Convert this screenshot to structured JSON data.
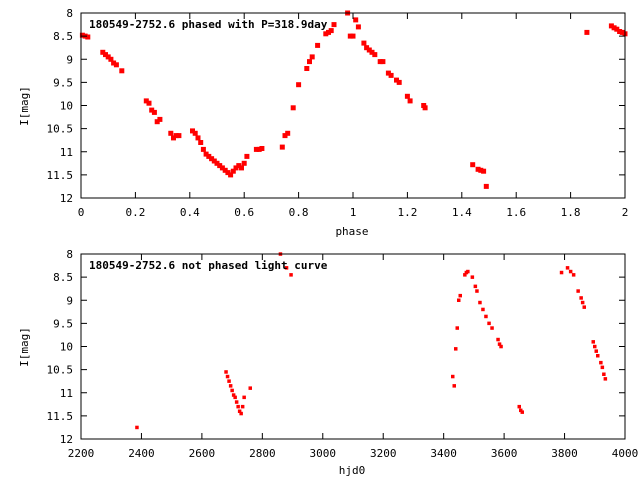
{
  "chart_data": [
    {
      "type": "scatter",
      "title": "180549-2752.6 phased with P=318.9day",
      "xlabel": "phase",
      "ylabel": "I[mag]",
      "xlim": [
        0,
        2
      ],
      "ylim": [
        12,
        8
      ],
      "y_inverted": true,
      "grid": false,
      "xticks": [
        "0",
        "0.2",
        "0.4",
        "0.6",
        "0.8",
        "1",
        "1.2",
        "1.4",
        "1.6",
        "1.8",
        "2"
      ],
      "yticks": [
        "8",
        "8.5",
        "9",
        "9.5",
        "10",
        "10.5",
        "11",
        "11.5",
        "12"
      ],
      "marker_color": "#ff0000",
      "series": [
        {
          "points": [
            [
              0.005,
              8.48
            ],
            [
              0.015,
              8.5
            ],
            [
              0.025,
              8.52
            ],
            [
              0.08,
              8.85
            ],
            [
              0.09,
              8.9
            ],
            [
              0.1,
              8.95
            ],
            [
              0.11,
              9.0
            ],
            [
              0.12,
              9.08
            ],
            [
              0.13,
              9.12
            ],
            [
              0.15,
              9.25
            ],
            [
              0.24,
              9.9
            ],
            [
              0.25,
              9.95
            ],
            [
              0.26,
              10.1
            ],
            [
              0.27,
              10.15
            ],
            [
              0.28,
              10.35
            ],
            [
              0.29,
              10.3
            ],
            [
              0.33,
              10.6
            ],
            [
              0.34,
              10.7
            ],
            [
              0.35,
              10.65
            ],
            [
              0.36,
              10.65
            ],
            [
              0.41,
              10.55
            ],
            [
              0.42,
              10.6
            ],
            [
              0.43,
              10.7
            ],
            [
              0.44,
              10.8
            ],
            [
              0.45,
              10.95
            ],
            [
              0.46,
              11.05
            ],
            [
              0.47,
              11.1
            ],
            [
              0.48,
              11.15
            ],
            [
              0.49,
              11.2
            ],
            [
              0.5,
              11.25
            ],
            [
              0.51,
              11.3
            ],
            [
              0.52,
              11.35
            ],
            [
              0.53,
              11.4
            ],
            [
              0.54,
              11.45
            ],
            [
              0.55,
              11.5
            ],
            [
              0.56,
              11.42
            ],
            [
              0.57,
              11.35
            ],
            [
              0.58,
              11.3
            ],
            [
              0.59,
              11.35
            ],
            [
              0.6,
              11.25
            ],
            [
              0.61,
              11.1
            ],
            [
              0.645,
              10.95
            ],
            [
              0.655,
              10.95
            ],
            [
              0.665,
              10.93
            ],
            [
              0.74,
              10.9
            ],
            [
              0.75,
              10.65
            ],
            [
              0.76,
              10.6
            ],
            [
              0.78,
              10.05
            ],
            [
              0.8,
              9.55
            ],
            [
              0.83,
              9.2
            ],
            [
              0.84,
              9.05
            ],
            [
              0.85,
              8.95
            ],
            [
              0.87,
              8.7
            ],
            [
              0.9,
              8.45
            ],
            [
              0.91,
              8.42
            ],
            [
              0.92,
              8.38
            ],
            [
              0.93,
              8.25
            ],
            [
              0.98,
              8.0
            ],
            [
              0.99,
              8.5
            ],
            [
              1.0,
              8.5
            ],
            [
              1.01,
              8.15
            ],
            [
              1.02,
              8.3
            ],
            [
              1.04,
              8.65
            ],
            [
              1.05,
              8.75
            ],
            [
              1.06,
              8.8
            ],
            [
              1.07,
              8.85
            ],
            [
              1.08,
              8.9
            ],
            [
              1.1,
              9.05
            ],
            [
              1.11,
              9.05
            ],
            [
              1.13,
              9.3
            ],
            [
              1.14,
              9.35
            ],
            [
              1.16,
              9.45
            ],
            [
              1.17,
              9.5
            ],
            [
              1.2,
              9.8
            ],
            [
              1.21,
              9.9
            ],
            [
              1.26,
              10.0
            ],
            [
              1.265,
              10.05
            ],
            [
              1.44,
              11.28
            ],
            [
              1.46,
              11.38
            ],
            [
              1.47,
              11.4
            ],
            [
              1.48,
              11.42
            ],
            [
              1.49,
              11.75
            ],
            [
              1.86,
              8.42
            ],
            [
              1.95,
              8.28
            ],
            [
              1.96,
              8.32
            ],
            [
              1.97,
              8.35
            ],
            [
              1.98,
              8.4
            ],
            [
              1.99,
              8.42
            ],
            [
              2.0,
              8.45
            ]
          ]
        }
      ]
    },
    {
      "type": "scatter",
      "title": "180549-2752.6 not phased light curve",
      "xlabel": "hjd0",
      "ylabel": "I[mag]",
      "xlim": [
        2200,
        4000
      ],
      "ylim": [
        12,
        8
      ],
      "y_inverted": true,
      "grid": false,
      "xticks": [
        "2200",
        "2400",
        "2600",
        "2800",
        "3000",
        "3200",
        "3400",
        "3600",
        "3800",
        "4000"
      ],
      "yticks": [
        "8",
        "8.5",
        "9",
        "9.5",
        "10",
        "10.5",
        "11",
        "11.5",
        "12"
      ],
      "marker_color": "#ff0000",
      "series": [
        {
          "points": [
            [
              2385,
              11.75
            ],
            [
              2680,
              10.55
            ],
            [
              2685,
              10.65
            ],
            [
              2690,
              10.75
            ],
            [
              2695,
              10.85
            ],
            [
              2700,
              10.95
            ],
            [
              2705,
              11.05
            ],
            [
              2710,
              11.1
            ],
            [
              2715,
              11.2
            ],
            [
              2720,
              11.3
            ],
            [
              2725,
              11.4
            ],
            [
              2730,
              11.45
            ],
            [
              2735,
              11.3
            ],
            [
              2740,
              11.1
            ],
            [
              2760,
              10.9
            ],
            [
              2860,
              8.0
            ],
            [
              2880,
              8.3
            ],
            [
              2895,
              8.45
            ],
            [
              3430,
              10.65
            ],
            [
              3435,
              10.85
            ],
            [
              3440,
              10.05
            ],
            [
              3445,
              9.6
            ],
            [
              3450,
              9.0
            ],
            [
              3455,
              8.9
            ],
            [
              3470,
              8.45
            ],
            [
              3475,
              8.4
            ],
            [
              3480,
              8.38
            ],
            [
              3495,
              8.5
            ],
            [
              3505,
              8.7
            ],
            [
              3510,
              8.8
            ],
            [
              3520,
              9.05
            ],
            [
              3530,
              9.2
            ],
            [
              3540,
              9.35
            ],
            [
              3550,
              9.5
            ],
            [
              3560,
              9.6
            ],
            [
              3580,
              9.85
            ],
            [
              3585,
              9.95
            ],
            [
              3590,
              10.0
            ],
            [
              3650,
              11.3
            ],
            [
              3655,
              11.38
            ],
            [
              3660,
              11.42
            ],
            [
              3790,
              8.4
            ],
            [
              3810,
              8.3
            ],
            [
              3820,
              8.38
            ],
            [
              3830,
              8.45
            ],
            [
              3845,
              8.8
            ],
            [
              3855,
              8.95
            ],
            [
              3860,
              9.05
            ],
            [
              3865,
              9.15
            ],
            [
              3895,
              9.9
            ],
            [
              3900,
              10.0
            ],
            [
              3905,
              10.1
            ],
            [
              3910,
              10.2
            ],
            [
              3920,
              10.35
            ],
            [
              3925,
              10.45
            ],
            [
              3930,
              10.6
            ],
            [
              3935,
              10.7
            ]
          ]
        }
      ]
    }
  ]
}
